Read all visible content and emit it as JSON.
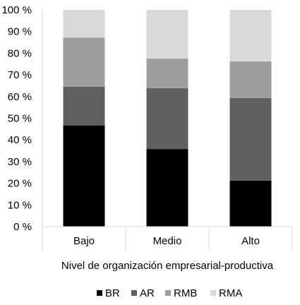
{
  "chart_data": {
    "type": "bar",
    "stacked": true,
    "title": "",
    "xlabel": "Nivel de organización empresarial-productiva",
    "ylabel": "",
    "categories": [
      "Bajo",
      "Medio",
      "Alto"
    ],
    "ylim": [
      0,
      100
    ],
    "yticks": [
      0,
      10,
      20,
      30,
      40,
      50,
      60,
      70,
      80,
      90,
      100
    ],
    "y_tick_format": "{v} %",
    "grid": false,
    "legend_position": "bottom",
    "series": [
      {
        "name": "BR",
        "color": "#000000",
        "values": [
          46.7,
          35.8,
          21.2
        ]
      },
      {
        "name": "AR",
        "color": "#606060",
        "values": [
          17.8,
          28.1,
          38.1
        ]
      },
      {
        "name": "RMB",
        "color": "#9e9e9e",
        "values": [
          22.7,
          13.6,
          16.9
        ]
      },
      {
        "name": "RMA",
        "color": "#d9d9d9",
        "values": [
          12.8,
          22.5,
          23.8
        ]
      }
    ]
  }
}
